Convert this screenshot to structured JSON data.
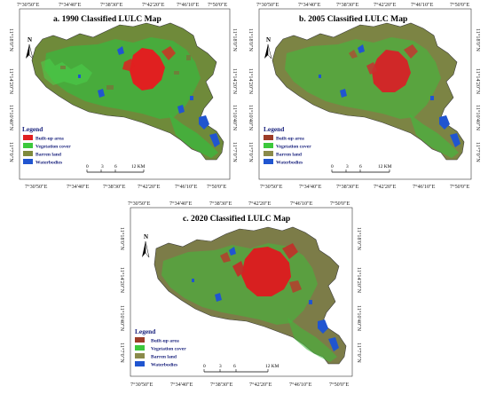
{
  "maps": [
    {
      "id": "a",
      "title": "a. 1990 Classified LULC Map",
      "top_ticks": [
        "7°30'50\"E",
        "7°34'40\"E",
        "7°38'30\"E",
        "7°42'20\"E",
        "7°46'10\"E",
        "7°50'0\"E"
      ],
      "bottom_ticks": [
        "7°30'50\"E",
        "7°34'40\"E",
        "7°38'30\"E",
        "7°42'20\"E",
        "7°46'10\"E",
        "7°50'0\"E"
      ],
      "left_ticks": [
        "11°18'0\"N",
        "11°14'20\"N",
        "11°10'40\"N",
        "11°7'0\"N"
      ],
      "right_ticks": [
        "11°18'0\"N",
        "11°14'20\"N",
        "11°10'40\"N",
        "11°7'0\"N"
      ],
      "legend_title": "Legend",
      "legend": [
        {
          "label": "Built-up area",
          "color": "#e02020"
        },
        {
          "label": "Vegetation cover",
          "color": "#3cc83c"
        },
        {
          "label": "Barren land",
          "color": "#7e8a3c"
        },
        {
          "label": "Waterbodies",
          "color": "#2055d0"
        }
      ],
      "scale_labels": [
        "0",
        "3",
        "6",
        "12 KM"
      ],
      "north": "N"
    },
    {
      "id": "b",
      "title": "b. 2005 Classified LULC Map",
      "top_ticks": [
        "7°30'50\"E",
        "7°34'40\"E",
        "7°38'30\"E",
        "7°42'20\"E",
        "7°46'10\"E",
        "7°50'0\"E"
      ],
      "bottom_ticks": [
        "7°30'50\"E",
        "7°34'40\"E",
        "7°38'30\"E",
        "7°42'20\"E",
        "7°46'10\"E",
        "7°50'0\"E"
      ],
      "left_ticks": [
        "11°18'0\"N",
        "11°14'20\"N",
        "11°10'40\"N",
        "11°7'0\"N"
      ],
      "right_ticks": [
        "11°18'0\"N",
        "11°14'20\"N",
        "11°10'40\"N",
        "11°7'0\"N"
      ],
      "legend_title": "Legend",
      "legend": [
        {
          "label": "Built-up area",
          "color": "#9c3c28"
        },
        {
          "label": "Vegetation cover",
          "color": "#3cc83c"
        },
        {
          "label": "Barren land",
          "color": "#8a8a4a"
        },
        {
          "label": "Waterbodies",
          "color": "#2055d0"
        }
      ],
      "scale_labels": [
        "0",
        "3",
        "6",
        "12 KM"
      ],
      "north": "N"
    },
    {
      "id": "c",
      "title": "c. 2020 Classified LULC Map",
      "top_ticks": [
        "7°30'50\"E",
        "7°34'40\"E",
        "7°38'30\"E",
        "7°42'20\"E",
        "7°46'10\"E",
        "7°50'0\"E"
      ],
      "bottom_ticks": [
        "7°30'50\"E",
        "7°34'40\"E",
        "7°38'30\"E",
        "7°42'20\"E",
        "7°46'10\"E",
        "7°50'0\"E"
      ],
      "left_ticks": [
        "11°18'0\"N",
        "11°14'20\"N",
        "11°10'40\"N",
        "11°7'0\"N"
      ],
      "right_ticks": [
        "11°18'0\"N",
        "11°14'20\"N",
        "11°10'40\"N",
        "11°7'0\"N"
      ],
      "legend_title": "Legend",
      "legend": [
        {
          "label": "Built-up area",
          "color": "#9c3c28"
        },
        {
          "label": "Vegetation cover",
          "color": "#3cc83c"
        },
        {
          "label": "Barren land",
          "color": "#8a8a4a"
        },
        {
          "label": "Waterbodies",
          "color": "#2055d0"
        }
      ],
      "scale_labels": [
        "0",
        "3",
        "6",
        "12 KM"
      ],
      "north": "N"
    }
  ]
}
